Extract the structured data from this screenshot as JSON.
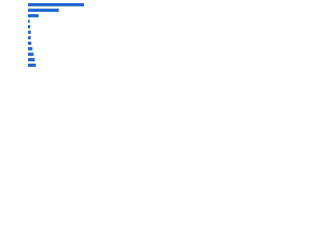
{
  "chart_data": {
    "type": "bar",
    "orientation": "horizontal",
    "categories": [
      null,
      null,
      null,
      null,
      null,
      null,
      null,
      null,
      null,
      null,
      null,
      null
    ],
    "values": [
      100,
      55,
      19,
      3,
      4,
      5,
      5,
      6,
      8,
      10,
      12,
      14
    ],
    "color": "#1a66cc"
  }
}
